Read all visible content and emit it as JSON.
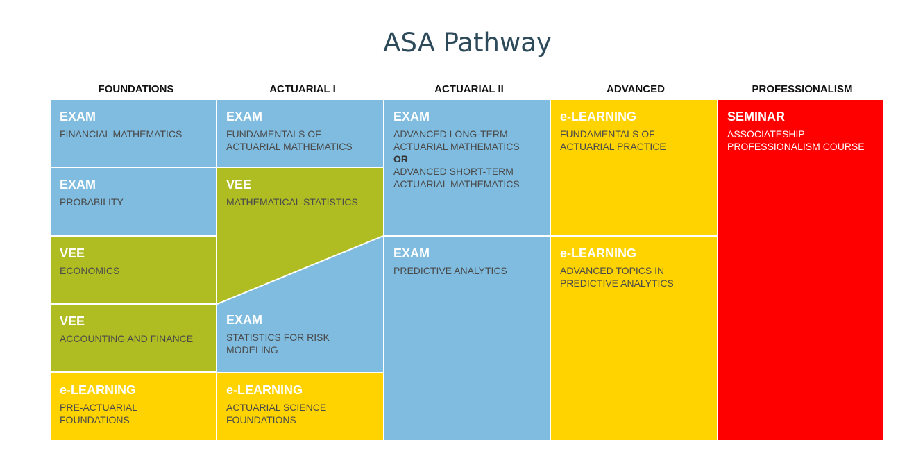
{
  "title": "ASA Pathway",
  "columns": [
    "FOUNDATIONS",
    "ACTUARIAL I",
    "ACTUARIAL II",
    "ADVANCED",
    "PROFESSIONALISM"
  ],
  "colors": {
    "exam": "#7fbcdf",
    "vee": "#afbd22",
    "elearning": "#ffd300",
    "seminar": "#ff0000"
  },
  "foundations": [
    {
      "kind": "EXAM",
      "name": "FINANCIAL MATHEMATICS"
    },
    {
      "kind": "EXAM",
      "name": "PROBABILITY"
    },
    {
      "kind": "VEE",
      "name": "ECONOMICS"
    },
    {
      "kind": "VEE",
      "name": "ACCOUNTING AND FINANCE"
    },
    {
      "kind": "e-LEARNING",
      "name": "PRE-ACTUARIAL FOUNDATIONS"
    }
  ],
  "actuarial1": [
    {
      "kind": "EXAM",
      "name": "FUNDAMENTALS OF ACTUARIAL MATHEMATICS"
    },
    {
      "kind": "VEE",
      "name": "MATHEMATICAL STATISTICS"
    },
    {
      "kind": "EXAM",
      "name": "STATISTICS FOR RISK MODELING"
    },
    {
      "kind": "e-LEARNING",
      "name": "ACTUARIAL SCIENCE FOUNDATIONS"
    }
  ],
  "actuarial2": [
    {
      "kind": "EXAM",
      "name": "ADVANCED LONG-TERM ACTUARIAL MATHEMATICS",
      "or": "OR",
      "name2": "ADVANCED SHORT-TERM ACTUARIAL MATHEMATICS"
    },
    {
      "kind": "EXAM",
      "name": "PREDICTIVE ANALYTICS"
    }
  ],
  "advanced": [
    {
      "kind": "e-LEARNING",
      "name": "FUNDAMENTALS OF ACTUARIAL PRACTICE"
    },
    {
      "kind": "e-LEARNING",
      "name": "ADVANCED TOPICS IN PREDICTIVE ANALYTICS"
    }
  ],
  "professionalism": [
    {
      "kind": "SEMINAR",
      "name": "ASSOCIATESHIP PROFESSIONALISM COURSE"
    }
  ]
}
